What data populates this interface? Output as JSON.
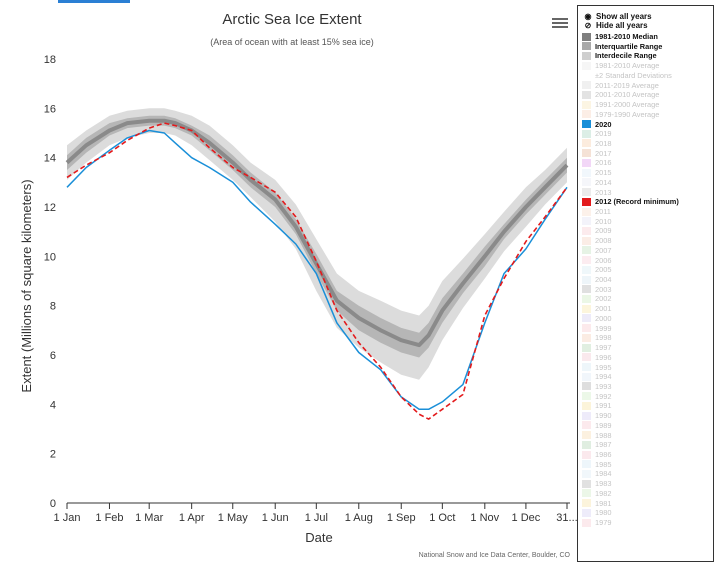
{
  "chart_data": {
    "type": "line",
    "title": "Arctic Sea Ice Extent",
    "subtitle": "(Area of ocean with at least 15% sea ice)",
    "xlabel": "Date",
    "ylabel": "Extent (Millions of square kilometers)",
    "ylim": [
      0,
      18
    ],
    "yticks": [
      0,
      2,
      4,
      6,
      8,
      10,
      12,
      14,
      16,
      18
    ],
    "xlim": [
      1,
      366
    ],
    "xticks": [
      {
        "day": 1,
        "label": "1 Jan"
      },
      {
        "day": 32,
        "label": "1 Feb"
      },
      {
        "day": 61,
        "label": "1 Mar"
      },
      {
        "day": 92,
        "label": "1 Apr"
      },
      {
        "day": 122,
        "label": "1 May"
      },
      {
        "day": 153,
        "label": "1 Jun"
      },
      {
        "day": 183,
        "label": "1 Jul"
      },
      {
        "day": 214,
        "label": "1 Aug"
      },
      {
        "day": 245,
        "label": "1 Sep"
      },
      {
        "day": 275,
        "label": "1 Oct"
      },
      {
        "day": 306,
        "label": "1 Nov"
      },
      {
        "day": 336,
        "label": "1 Dec"
      },
      {
        "day": 366,
        "label": "31..."
      }
    ],
    "grid": false,
    "legend_position": "right",
    "x": [
      1,
      15,
      32,
      45,
      61,
      72,
      80,
      92,
      105,
      122,
      135,
      153,
      168,
      183,
      198,
      214,
      230,
      245,
      258,
      265,
      275,
      290,
      306,
      320,
      336,
      350,
      366
    ],
    "series": [
      {
        "name": "1981-2010 Median",
        "color": "#8a8a8a",
        "values": [
          13.8,
          14.5,
          15.1,
          15.4,
          15.5,
          15.5,
          15.4,
          15.1,
          14.6,
          13.8,
          13.1,
          12.3,
          11.2,
          9.7,
          8.2,
          7.5,
          7.0,
          6.6,
          6.4,
          6.8,
          7.8,
          8.9,
          10.0,
          11.0,
          12.0,
          12.8,
          13.7
        ]
      },
      {
        "name": "Interquartile Range",
        "color": "#b6b6b6",
        "low": [
          13.5,
          14.2,
          14.9,
          15.2,
          15.3,
          15.3,
          15.2,
          14.9,
          14.3,
          13.5,
          12.8,
          12.0,
          10.9,
          9.3,
          7.8,
          7.0,
          6.5,
          6.1,
          5.9,
          6.3,
          7.3,
          8.5,
          9.6,
          10.7,
          11.7,
          12.5,
          13.4
        ],
        "high": [
          14.1,
          14.8,
          15.4,
          15.6,
          15.7,
          15.7,
          15.6,
          15.3,
          14.9,
          14.1,
          13.4,
          12.6,
          11.5,
          10.1,
          8.6,
          8.0,
          7.5,
          7.1,
          6.9,
          7.3,
          8.3,
          9.3,
          10.4,
          11.3,
          12.3,
          13.1,
          14.0
        ]
      },
      {
        "name": "±2 Standard Deviations",
        "color": "#dcdcdc",
        "low": [
          13.1,
          13.8,
          14.5,
          14.8,
          15.0,
          15.0,
          14.9,
          14.5,
          13.9,
          13.1,
          12.4,
          11.4,
          10.3,
          8.6,
          7.1,
          6.3,
          5.7,
          5.2,
          5.0,
          5.5,
          6.6,
          7.9,
          9.1,
          10.2,
          11.2,
          12.1,
          13.0
        ],
        "high": [
          14.5,
          15.1,
          15.7,
          15.9,
          16.0,
          16.0,
          15.9,
          15.7,
          15.3,
          14.5,
          13.8,
          13.1,
          12.1,
          10.7,
          9.3,
          8.6,
          8.2,
          7.8,
          7.6,
          8.0,
          9.0,
          9.9,
          10.9,
          11.8,
          12.8,
          13.5,
          14.4
        ]
      },
      {
        "name": "2020",
        "color": "#1a8fd8",
        "values": [
          12.8,
          13.6,
          14.3,
          14.8,
          15.1,
          15.0,
          14.6,
          14.0,
          13.6,
          13.0,
          12.2,
          11.3,
          10.5,
          9.3,
          7.3,
          6.1,
          5.4,
          4.3,
          3.8,
          3.8,
          4.1,
          4.8,
          7.3,
          9.3,
          10.3,
          11.5,
          12.8
        ]
      },
      {
        "name": "2012 (Record minimum)",
        "color": "#e31a1c",
        "values": [
          13.2,
          13.7,
          14.2,
          14.7,
          15.2,
          15.4,
          15.3,
          15.1,
          14.4,
          13.6,
          13.2,
          12.6,
          11.6,
          9.8,
          7.8,
          6.5,
          5.5,
          4.3,
          3.6,
          3.4,
          3.8,
          4.4,
          7.6,
          9.1,
          10.6,
          11.6,
          12.8
        ]
      }
    ]
  },
  "credit": "National Snow and Ice Data Center, Boulder, CO",
  "menu_icon": "hamburger-icon",
  "legend": {
    "show_all": "Show all years",
    "hide_all": "Hide all years",
    "items": [
      {
        "label": "1981-2010 Median",
        "color": "#7f7f7f",
        "shown": true
      },
      {
        "label": "Interquartile Range",
        "color": "#a9a9a9",
        "shown": true
      },
      {
        "label": "Interdecile Range",
        "color": "#cfcfcf",
        "shown": true
      },
      {
        "label": "1981-2010 Average",
        "color": "#e5e5e5",
        "shown": false
      },
      {
        "label": "±2 Standard Deviations",
        "color": "#ffffff",
        "shown": false
      },
      {
        "label": "2011-2019 Average",
        "color": "#d3d3d3",
        "shown": false
      },
      {
        "label": "2001-2010 Average",
        "color": "#b0b0b0",
        "shown": false
      },
      {
        "label": "1991-2000 Average",
        "color": "#f6e2b0",
        "shown": false
      },
      {
        "label": "1979-1990 Average",
        "color": "#f6cdb8",
        "shown": false
      },
      {
        "label": "2020",
        "color": "#1a8fd8",
        "shown": true
      },
      {
        "label": "2019",
        "color": "#9acfb6",
        "shown": false
      },
      {
        "label": "2018",
        "color": "#f5c9a0",
        "shown": false
      },
      {
        "label": "2017",
        "color": "#e2ad8a",
        "shown": false
      },
      {
        "label": "2016",
        "color": "#d98be8",
        "shown": false
      },
      {
        "label": "2015",
        "color": "#d8e9f5",
        "shown": false
      },
      {
        "label": "2014",
        "color": "#e3e6f2",
        "shown": false
      },
      {
        "label": "2013",
        "color": "#c7c7c7",
        "shown": false
      },
      {
        "label": "2012 (Record minimum)",
        "color": "#e31a1c",
        "shown": true
      },
      {
        "label": "2011",
        "color": "#f7d6c3",
        "shown": false
      },
      {
        "label": "2010",
        "color": "#dcdcf0",
        "shown": false
      },
      {
        "label": "2009",
        "color": "#f5c7cc",
        "shown": false
      },
      {
        "label": "2008",
        "color": "#f3cbb8",
        "shown": false
      },
      {
        "label": "2007",
        "color": "#b8dcb4",
        "shown": false
      },
      {
        "label": "2006",
        "color": "#f6c9d3",
        "shown": false
      },
      {
        "label": "2005",
        "color": "#d2e8f2",
        "shown": false
      },
      {
        "label": "2004",
        "color": "#cfe3ee",
        "shown": false
      },
      {
        "label": "2003",
        "color": "#a7a7a7",
        "shown": false
      },
      {
        "label": "2002",
        "color": "#c6e8b8",
        "shown": false
      },
      {
        "label": "2001",
        "color": "#f6e19c",
        "shown": false
      },
      {
        "label": "2000",
        "color": "#cbc6ee",
        "shown": false
      },
      {
        "label": "1999",
        "color": "#f5c3c8",
        "shown": false
      },
      {
        "label": "1998",
        "color": "#f3c8b0",
        "shown": false
      },
      {
        "label": "1997",
        "color": "#a9d2aa",
        "shown": false
      },
      {
        "label": "1996",
        "color": "#f2bfcc",
        "shown": false
      },
      {
        "label": "1995",
        "color": "#cde6f2",
        "shown": false
      },
      {
        "label": "1994",
        "color": "#d6e6f3",
        "shown": false
      },
      {
        "label": "1993",
        "color": "#a0a0a0",
        "shown": false
      },
      {
        "label": "1992",
        "color": "#c9eabd",
        "shown": false
      },
      {
        "label": "1991",
        "color": "#f6df95",
        "shown": false
      },
      {
        "label": "1990",
        "color": "#cdc6f0",
        "shown": false
      },
      {
        "label": "1989",
        "color": "#f6c3cb",
        "shown": false
      },
      {
        "label": "1988",
        "color": "#f6d7a5",
        "shown": false
      },
      {
        "label": "1987",
        "color": "#a7cfa8",
        "shown": false
      },
      {
        "label": "1986",
        "color": "#f3bfcb",
        "shown": false
      },
      {
        "label": "1985",
        "color": "#cfe6f3",
        "shown": false
      },
      {
        "label": "1984",
        "color": "#d7e7f4",
        "shown": false
      },
      {
        "label": "1983",
        "color": "#a9a9a9",
        "shown": false
      },
      {
        "label": "1982",
        "color": "#c9e8bd",
        "shown": false
      },
      {
        "label": "1981",
        "color": "#f6e09a",
        "shown": false
      },
      {
        "label": "1980",
        "color": "#cec8f0",
        "shown": false
      },
      {
        "label": "1979",
        "color": "#f6c4cc",
        "shown": false
      }
    ]
  }
}
